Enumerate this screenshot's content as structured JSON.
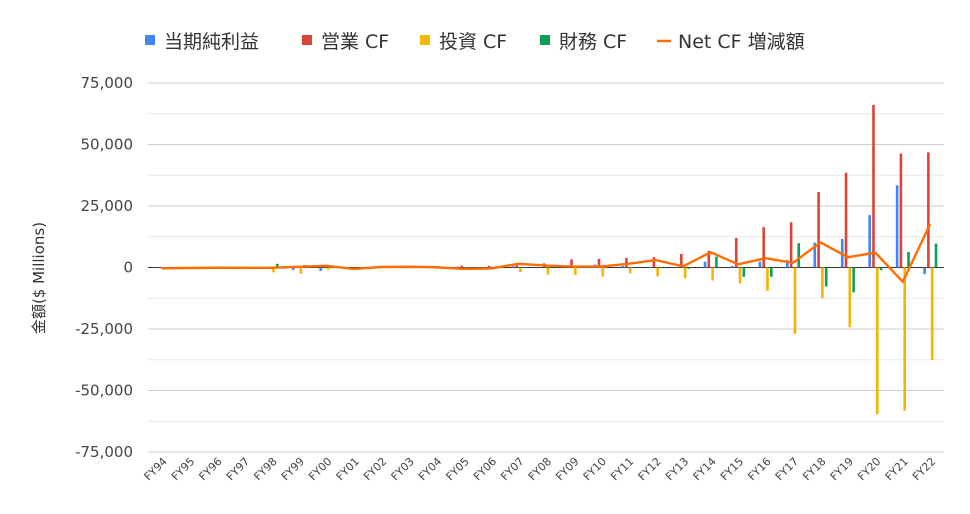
{
  "chart_data": {
    "type": "bar",
    "title": "",
    "xlabel": "",
    "ylabel": "金額($ Millions)",
    "ylim": [
      -75000,
      75000
    ],
    "yticks": [
      75000,
      50000,
      25000,
      0,
      -25000,
      -50000,
      -75000
    ],
    "ytick_labels": [
      "75,000",
      "50,000",
      "25,000",
      "0",
      "-25,000",
      "-50,000",
      "-75,000"
    ],
    "grid": true,
    "legend_position": "top",
    "categories": [
      "FY94",
      "FY95",
      "FY96",
      "FY97",
      "FY98",
      "FY99",
      "FY00",
      "FY01",
      "FY02",
      "FY03",
      "FY04",
      "FY05",
      "FY06",
      "FY07",
      "FY08",
      "FY09",
      "FY10",
      "FY11",
      "FY12",
      "FY13",
      "FY14",
      "FY15",
      "FY16",
      "FY17",
      "FY18",
      "FY19",
      "FY20",
      "FY21",
      "FY22"
    ],
    "series": [
      {
        "name": "当期純利益",
        "kind": "bar",
        "color": "#4285f4",
        "values": [
          -10,
          -300,
          -150,
          -20,
          -120,
          -1000,
          -1400,
          -570,
          0,
          35,
          590,
          360,
          190,
          480,
          -210,
          900,
          1150,
          630,
          270,
          270,
          2400,
          600,
          2400,
          3000,
          10100,
          11600,
          21300,
          33400,
          -2700
        ]
      },
      {
        "name": "営業 CF",
        "kind": "bar",
        "color": "#db4437",
        "values": [
          -25,
          -110,
          -170,
          -50,
          80,
          -90,
          -130,
          -120,
          170,
          390,
          570,
          730,
          700,
          1400,
          1700,
          3300,
          3500,
          3900,
          4200,
          5500,
          6800,
          12000,
          16400,
          18400,
          30700,
          38500,
          66100,
          46300,
          46800
        ]
      },
      {
        "name": "投資 CF",
        "kind": "bar",
        "color": "#f4b400",
        "values": [
          -50,
          -20,
          -450,
          -100,
          -2000,
          -2500,
          -900,
          -200,
          -100,
          -150,
          -300,
          -800,
          -500,
          -1900,
          -2900,
          -3000,
          -3700,
          -2400,
          -3600,
          -4300,
          -5300,
          -6500,
          -9500,
          -27000,
          -12400,
          -24300,
          -59600,
          -58200,
          -37600
        ]
      },
      {
        "name": "財務 CF",
        "kind": "bar",
        "color": "#0f9d58",
        "values": [
          20,
          70,
          80,
          -100,
          1500,
          1000,
          -300,
          -200,
          0,
          0,
          -100,
          -200,
          -300,
          -100,
          0,
          0,
          -200,
          -100,
          -100,
          -500,
          4400,
          -3800,
          -3800,
          9900,
          -7700,
          -10100,
          -1100,
          6300,
          9700
        ]
      },
      {
        "name": "Net CF 増減額",
        "kind": "line",
        "color": "#ff6d00",
        "values": [
          -300,
          -200,
          -100,
          -150,
          -100,
          300,
          700,
          -600,
          200,
          300,
          100,
          -600,
          -400,
          1500,
          800,
          400,
          400,
          1500,
          3000,
          500,
          6200,
          1300,
          3800,
          1900,
          10200,
          4200,
          6000,
          -5800,
          17800
        ]
      }
    ]
  }
}
